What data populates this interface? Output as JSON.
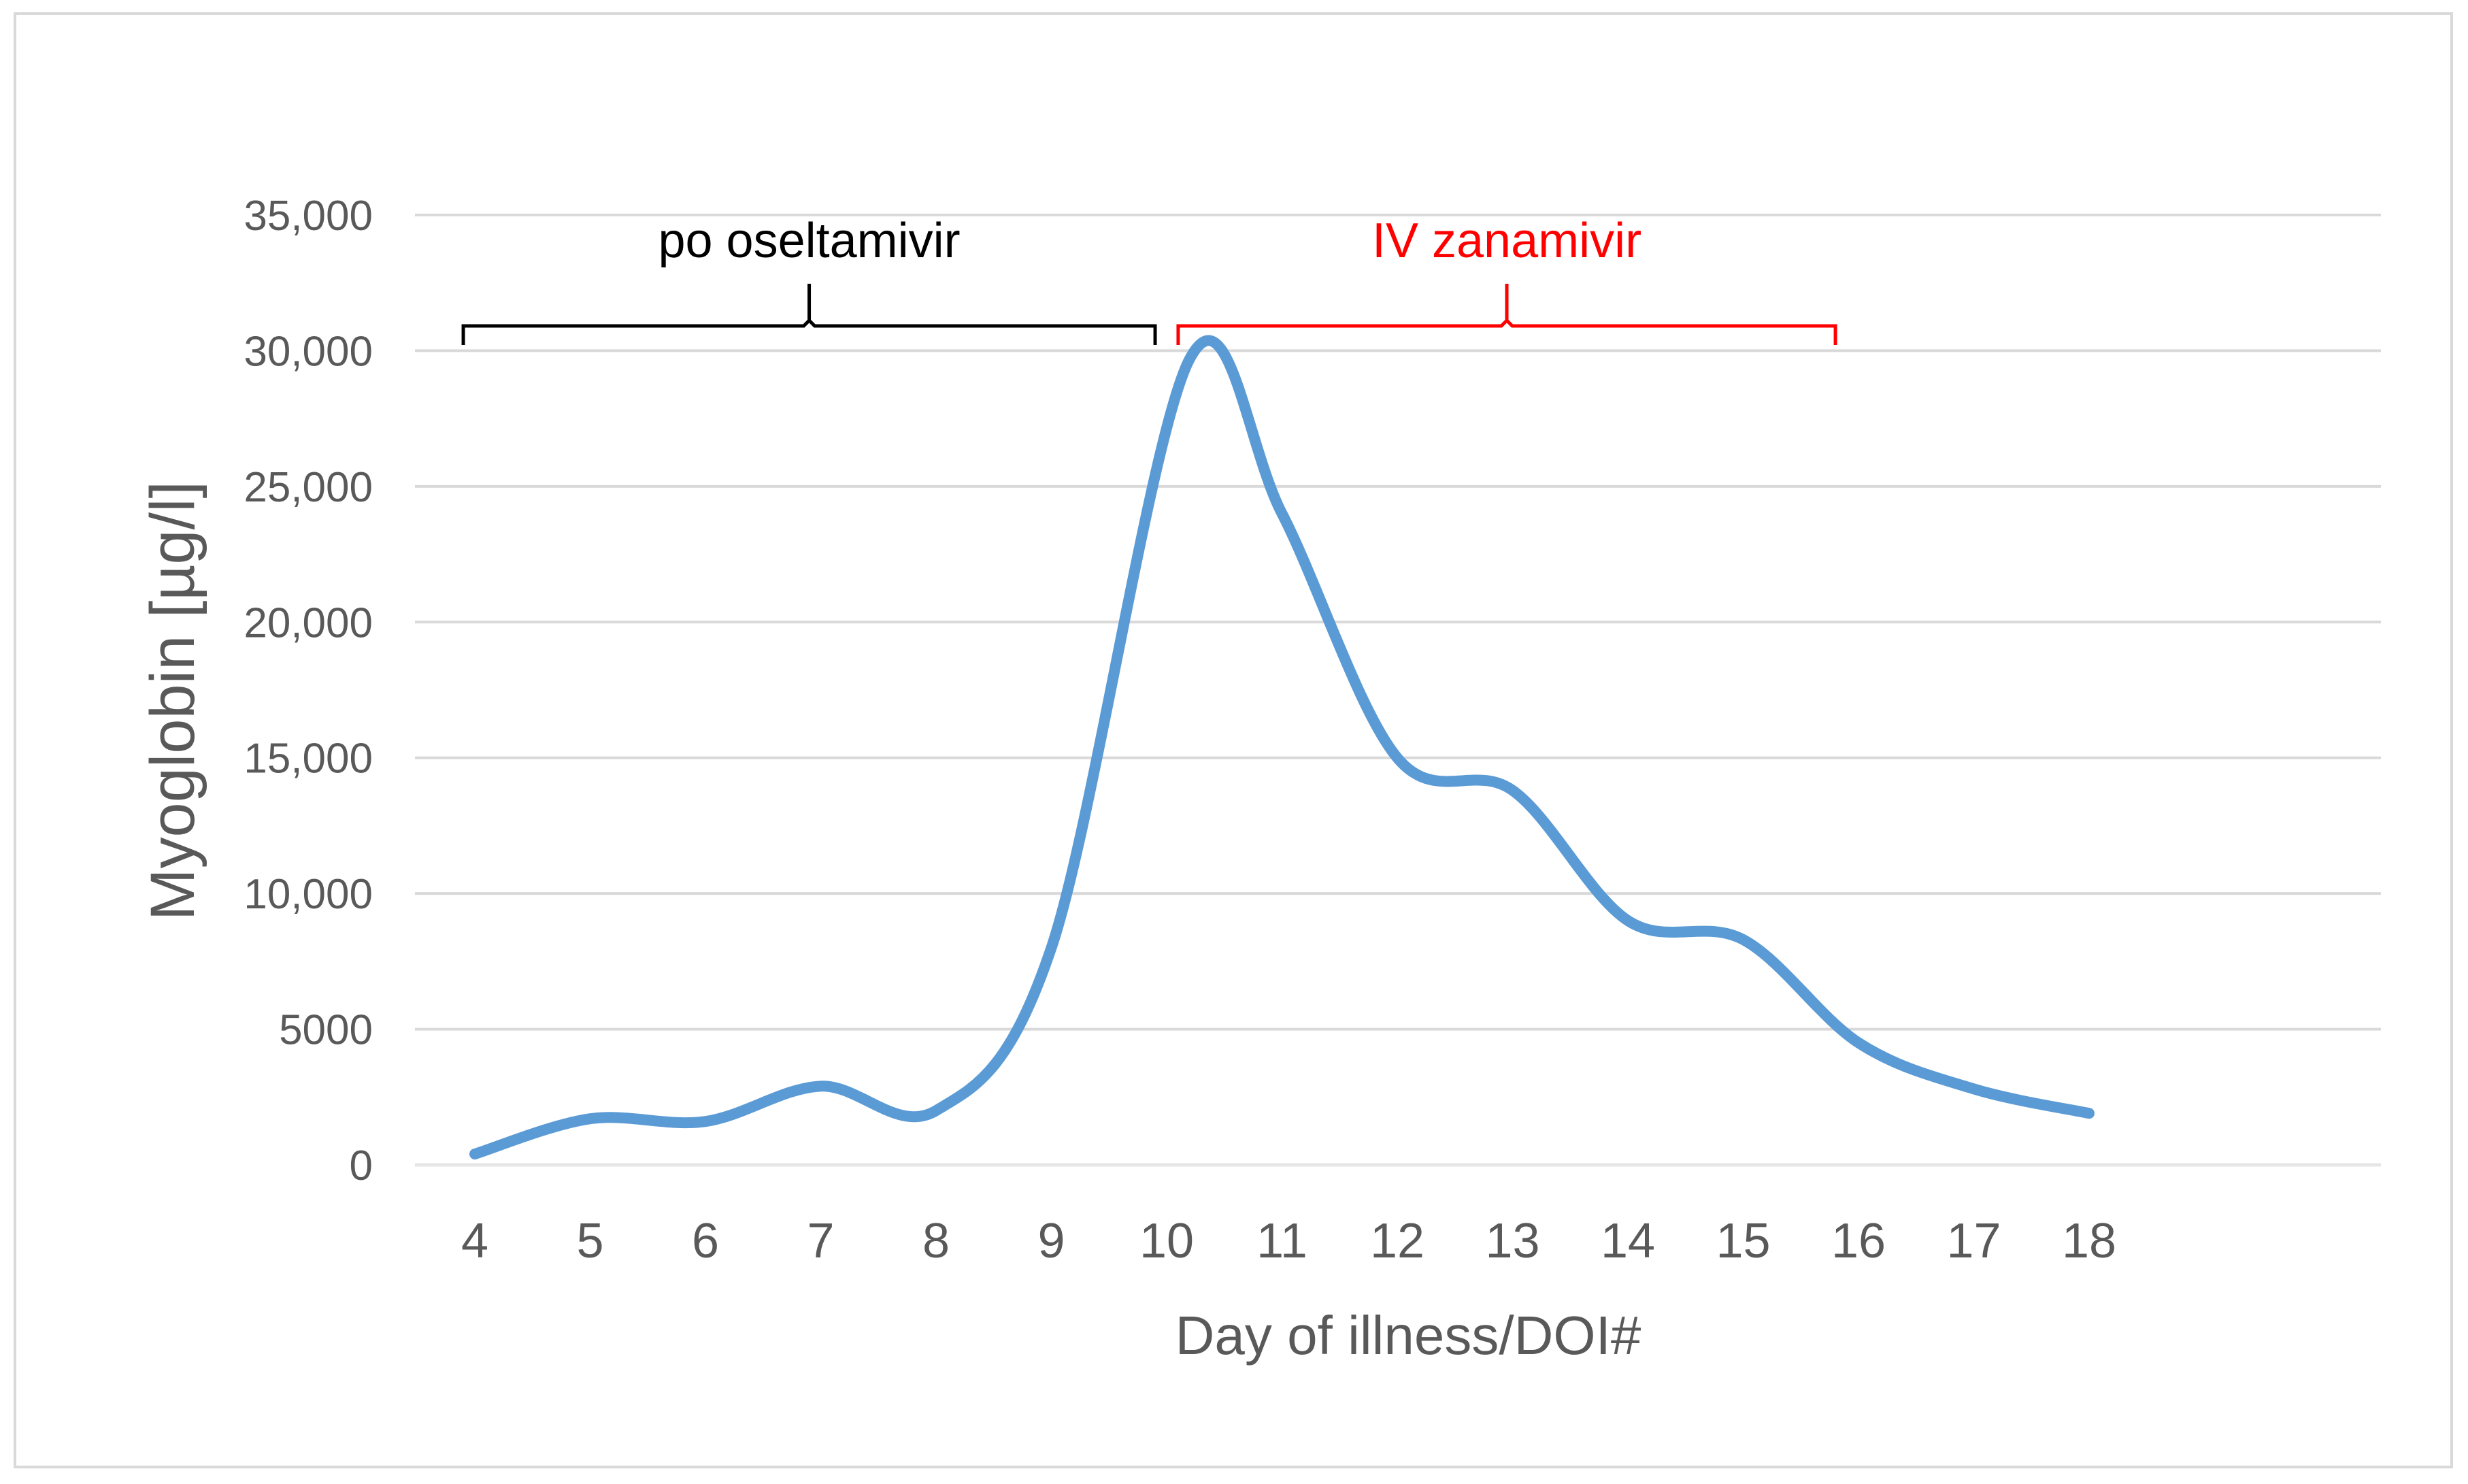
{
  "chart_data": {
    "type": "line",
    "smooth": true,
    "title": "",
    "xlabel": "Day of illness/DOI#",
    "ylabel": "Myoglobin [µg/l]",
    "ylim": [
      0,
      35000
    ],
    "y_ticks": [
      {
        "value": 0,
        "label": "0"
      },
      {
        "value": 5000,
        "label": "5000"
      },
      {
        "value": 10000,
        "label": "10,000"
      },
      {
        "value": 15000,
        "label": "15,000"
      },
      {
        "value": 20000,
        "label": "20,000"
      },
      {
        "value": 25000,
        "label": "25,000"
      },
      {
        "value": 30000,
        "label": "30,000"
      },
      {
        "value": 35000,
        "label": "35,000"
      }
    ],
    "x_ticks": [
      "4",
      "5",
      "6",
      "7",
      "8",
      "9",
      "10",
      "11",
      "12",
      "13",
      "14",
      "15",
      "16",
      "17",
      "18"
    ],
    "xlim": [
      3.6,
      20.2
    ],
    "grid": true,
    "legend": "none",
    "series": [
      {
        "color": "#5b9bd5",
        "points": [
          {
            "x": 4,
            "y": 400
          },
          {
            "x": 5,
            "y": 1700
          },
          {
            "x": 6,
            "y": 1600
          },
          {
            "x": 7,
            "y": 2900
          },
          {
            "x": 8,
            "y": 2000
          },
          {
            "x": 9,
            "y": 8000
          },
          {
            "x": 10.2,
            "y": 29700
          },
          {
            "x": 11,
            "y": 24000
          },
          {
            "x": 12,
            "y": 15000
          },
          {
            "x": 13,
            "y": 13800
          },
          {
            "x": 14,
            "y": 9000
          },
          {
            "x": 15,
            "y": 8300
          },
          {
            "x": 16,
            "y": 4500
          },
          {
            "x": 17,
            "y": 2800
          },
          {
            "x": 18,
            "y": 1900
          }
        ]
      }
    ],
    "annotations": [
      {
        "text": "po oseltamivir",
        "color": "#000000",
        "x_start": 3.9,
        "x_end": 9.9
      },
      {
        "text": "IV zanamivir",
        "color": "#ff0000",
        "x_start": 10.1,
        "x_end": 15.8
      }
    ],
    "colors": {
      "line": "#5b9bd5",
      "grid": "#d9d9d9",
      "baseline": "#e6e6e6",
      "text": "#595959",
      "oseltamivir": "#000000",
      "zanamivir": "#ff0000"
    }
  }
}
